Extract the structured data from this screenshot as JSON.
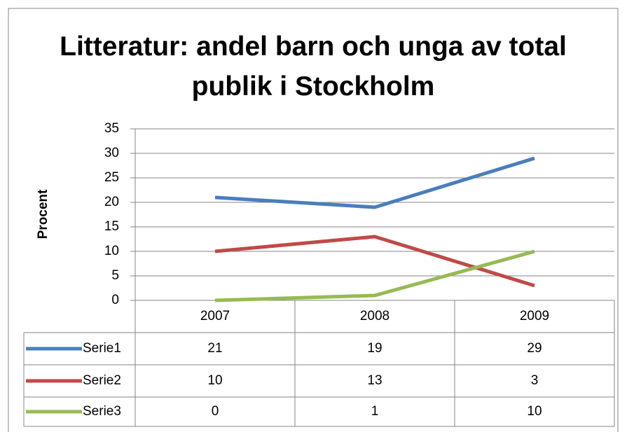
{
  "chart_data": {
    "type": "line",
    "title": "Litteratur: andel barn och unga av total publik i Stockholm",
    "y_label": "Procent",
    "categories": [
      "2007",
      "2008",
      "2009"
    ],
    "series": [
      {
        "name": "Serie1",
        "color": "#4a7ebb",
        "values": [
          21,
          19,
          29
        ]
      },
      {
        "name": "Serie2",
        "color": "#be4b48",
        "values": [
          10,
          13,
          3
        ]
      },
      {
        "name": "Serie3",
        "color": "#98b954",
        "values": [
          0,
          1,
          10
        ]
      }
    ],
    "ylim": [
      0,
      35
    ],
    "yticks": [
      0,
      5,
      10,
      15,
      20,
      25,
      30,
      35
    ],
    "grid": true
  }
}
